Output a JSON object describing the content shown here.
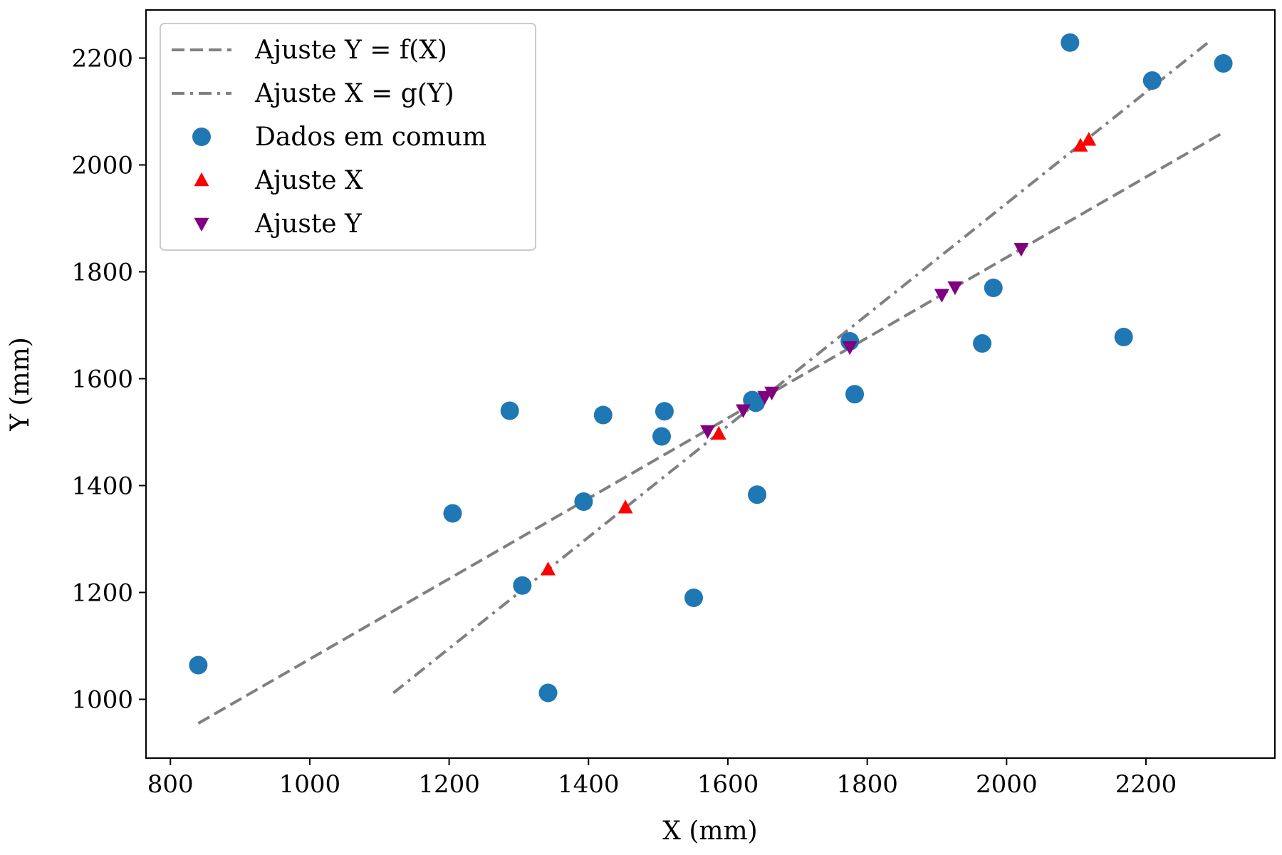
{
  "chart_data": {
    "type": "scatter",
    "title": "",
    "xlabel": "X (mm)",
    "ylabel": "Y (mm)",
    "xlim": [
      765,
      2385
    ],
    "ylim": [
      890,
      2290
    ],
    "xticks": [
      800,
      1000,
      1200,
      1400,
      1600,
      1800,
      2000,
      2200
    ],
    "yticks": [
      1000,
      1200,
      1400,
      1600,
      1800,
      2000,
      2200
    ],
    "grid": false,
    "legend_position": "top-left",
    "series": [
      {
        "name": "Ajuste Y = f(X)",
        "kind": "line",
        "style": "dashed",
        "color": "#808080",
        "x": [
          840,
          2310
        ],
        "y": [
          955,
          2060
        ]
      },
      {
        "name": "Ajuste X = g(Y)",
        "kind": "line",
        "style": "dashdot",
        "color": "#808080",
        "x": [
          1120,
          2290
        ],
        "y": [
          1012,
          2230
        ]
      },
      {
        "name": "Dados em comum",
        "kind": "scatter",
        "marker": "circle",
        "color": "#1f77b4",
        "x": [
          840,
          1205,
          1287,
          1305,
          1342,
          1393,
          1421,
          1505,
          1509,
          1551,
          1635,
          1640,
          1642,
          1775,
          1782,
          1965,
          1981,
          2091,
          2168,
          2209,
          2311
        ],
        "y": [
          1064,
          1348,
          1540,
          1213,
          1012,
          1370,
          1532,
          1492,
          1539,
          1190,
          1560,
          1555,
          1383,
          1670,
          1571,
          1666,
          1770,
          2229,
          1678,
          2158,
          2190
        ]
      },
      {
        "name": "Ajuste X",
        "kind": "scatter",
        "marker": "triangle-up",
        "color": "#ff0000",
        "x": [
          1342,
          1453,
          1587,
          2106,
          2118
        ],
        "y": [
          1243,
          1359,
          1497,
          2036,
          2047
        ]
      },
      {
        "name": "Ajuste Y",
        "kind": "scatter",
        "marker": "triangle-down",
        "color": "#800080",
        "x": [
          1571,
          1622,
          1653,
          1663,
          1775,
          1907,
          1926,
          2021
        ],
        "y": [
          1502,
          1541,
          1566,
          1574,
          1659,
          1757,
          1771,
          1843
        ]
      }
    ]
  }
}
